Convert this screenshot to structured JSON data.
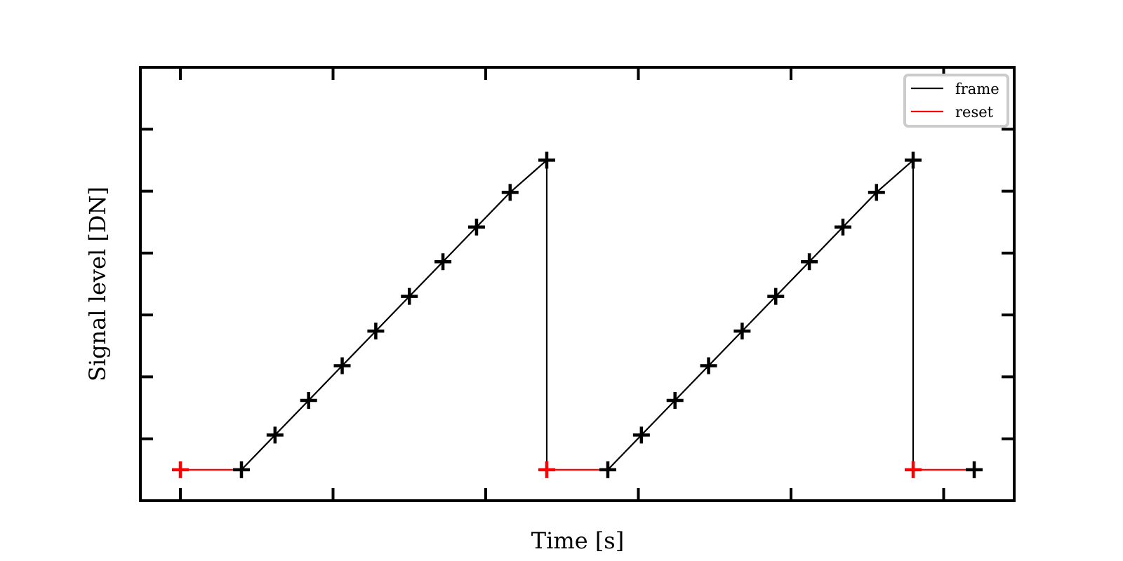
{
  "chart_data": {
    "type": "line",
    "title": "",
    "xlabel": "Time [s]",
    "ylabel": "Signal level [DN]",
    "xlim": [
      -1.31,
      27.31
    ],
    "ylim": [
      -1.0,
      13.0
    ],
    "x_tick_values": [
      0,
      5,
      10,
      15,
      20,
      25
    ],
    "y_tick_values": [
      1,
      3,
      5,
      7,
      9,
      11
    ],
    "x_tick_labels": [],
    "y_tick_labels": [],
    "grid": false,
    "legend_position": "top-right",
    "colors": {
      "frame": "#000000",
      "reset": "#ff0000",
      "axes": "#000000",
      "legend_frame": "#cccccc"
    },
    "series": [
      {
        "name": "frame",
        "color": "#000000",
        "segments": [
          {
            "x": [
              2,
              3.1,
              4.2,
              5.3,
              6.4,
              7.5,
              8.6,
              9.7,
              10.8,
              12,
              12
            ],
            "y": [
              0,
              1.12,
              2.24,
              3.36,
              4.48,
              5.6,
              6.72,
              7.84,
              8.96,
              10,
              0
            ]
          },
          {
            "x": [
              14,
              15.1,
              16.2,
              17.3,
              18.4,
              19.5,
              20.6,
              21.7,
              22.8,
              24,
              24
            ],
            "y": [
              0,
              1.12,
              2.24,
              3.36,
              4.48,
              5.6,
              6.72,
              7.84,
              8.96,
              10,
              0
            ]
          }
        ],
        "markers": [
          {
            "x": 2,
            "y": 0
          },
          {
            "x": 3.1,
            "y": 1.12
          },
          {
            "x": 4.2,
            "y": 2.24
          },
          {
            "x": 5.3,
            "y": 3.36
          },
          {
            "x": 6.4,
            "y": 4.48
          },
          {
            "x": 7.5,
            "y": 5.6
          },
          {
            "x": 8.6,
            "y": 6.72
          },
          {
            "x": 9.7,
            "y": 7.84
          },
          {
            "x": 10.8,
            "y": 8.96
          },
          {
            "x": 12,
            "y": 10
          },
          {
            "x": 14,
            "y": 0
          },
          {
            "x": 15.1,
            "y": 1.12
          },
          {
            "x": 16.2,
            "y": 2.24
          },
          {
            "x": 17.3,
            "y": 3.36
          },
          {
            "x": 18.4,
            "y": 4.48
          },
          {
            "x": 19.5,
            "y": 5.6
          },
          {
            "x": 20.6,
            "y": 6.72
          },
          {
            "x": 21.7,
            "y": 7.84
          },
          {
            "x": 22.8,
            "y": 8.96
          },
          {
            "x": 24,
            "y": 10
          },
          {
            "x": 26,
            "y": 0
          }
        ]
      },
      {
        "name": "reset",
        "color": "#ff0000",
        "segments": [
          {
            "x": [
              0,
              2
            ],
            "y": [
              0,
              0
            ]
          },
          {
            "x": [
              12,
              14
            ],
            "y": [
              0,
              0
            ]
          },
          {
            "x": [
              24,
              26
            ],
            "y": [
              0,
              0
            ]
          }
        ],
        "markers": [
          {
            "x": 0,
            "y": 0
          },
          {
            "x": 12,
            "y": 0
          },
          {
            "x": 24,
            "y": 0
          }
        ]
      }
    ]
  }
}
